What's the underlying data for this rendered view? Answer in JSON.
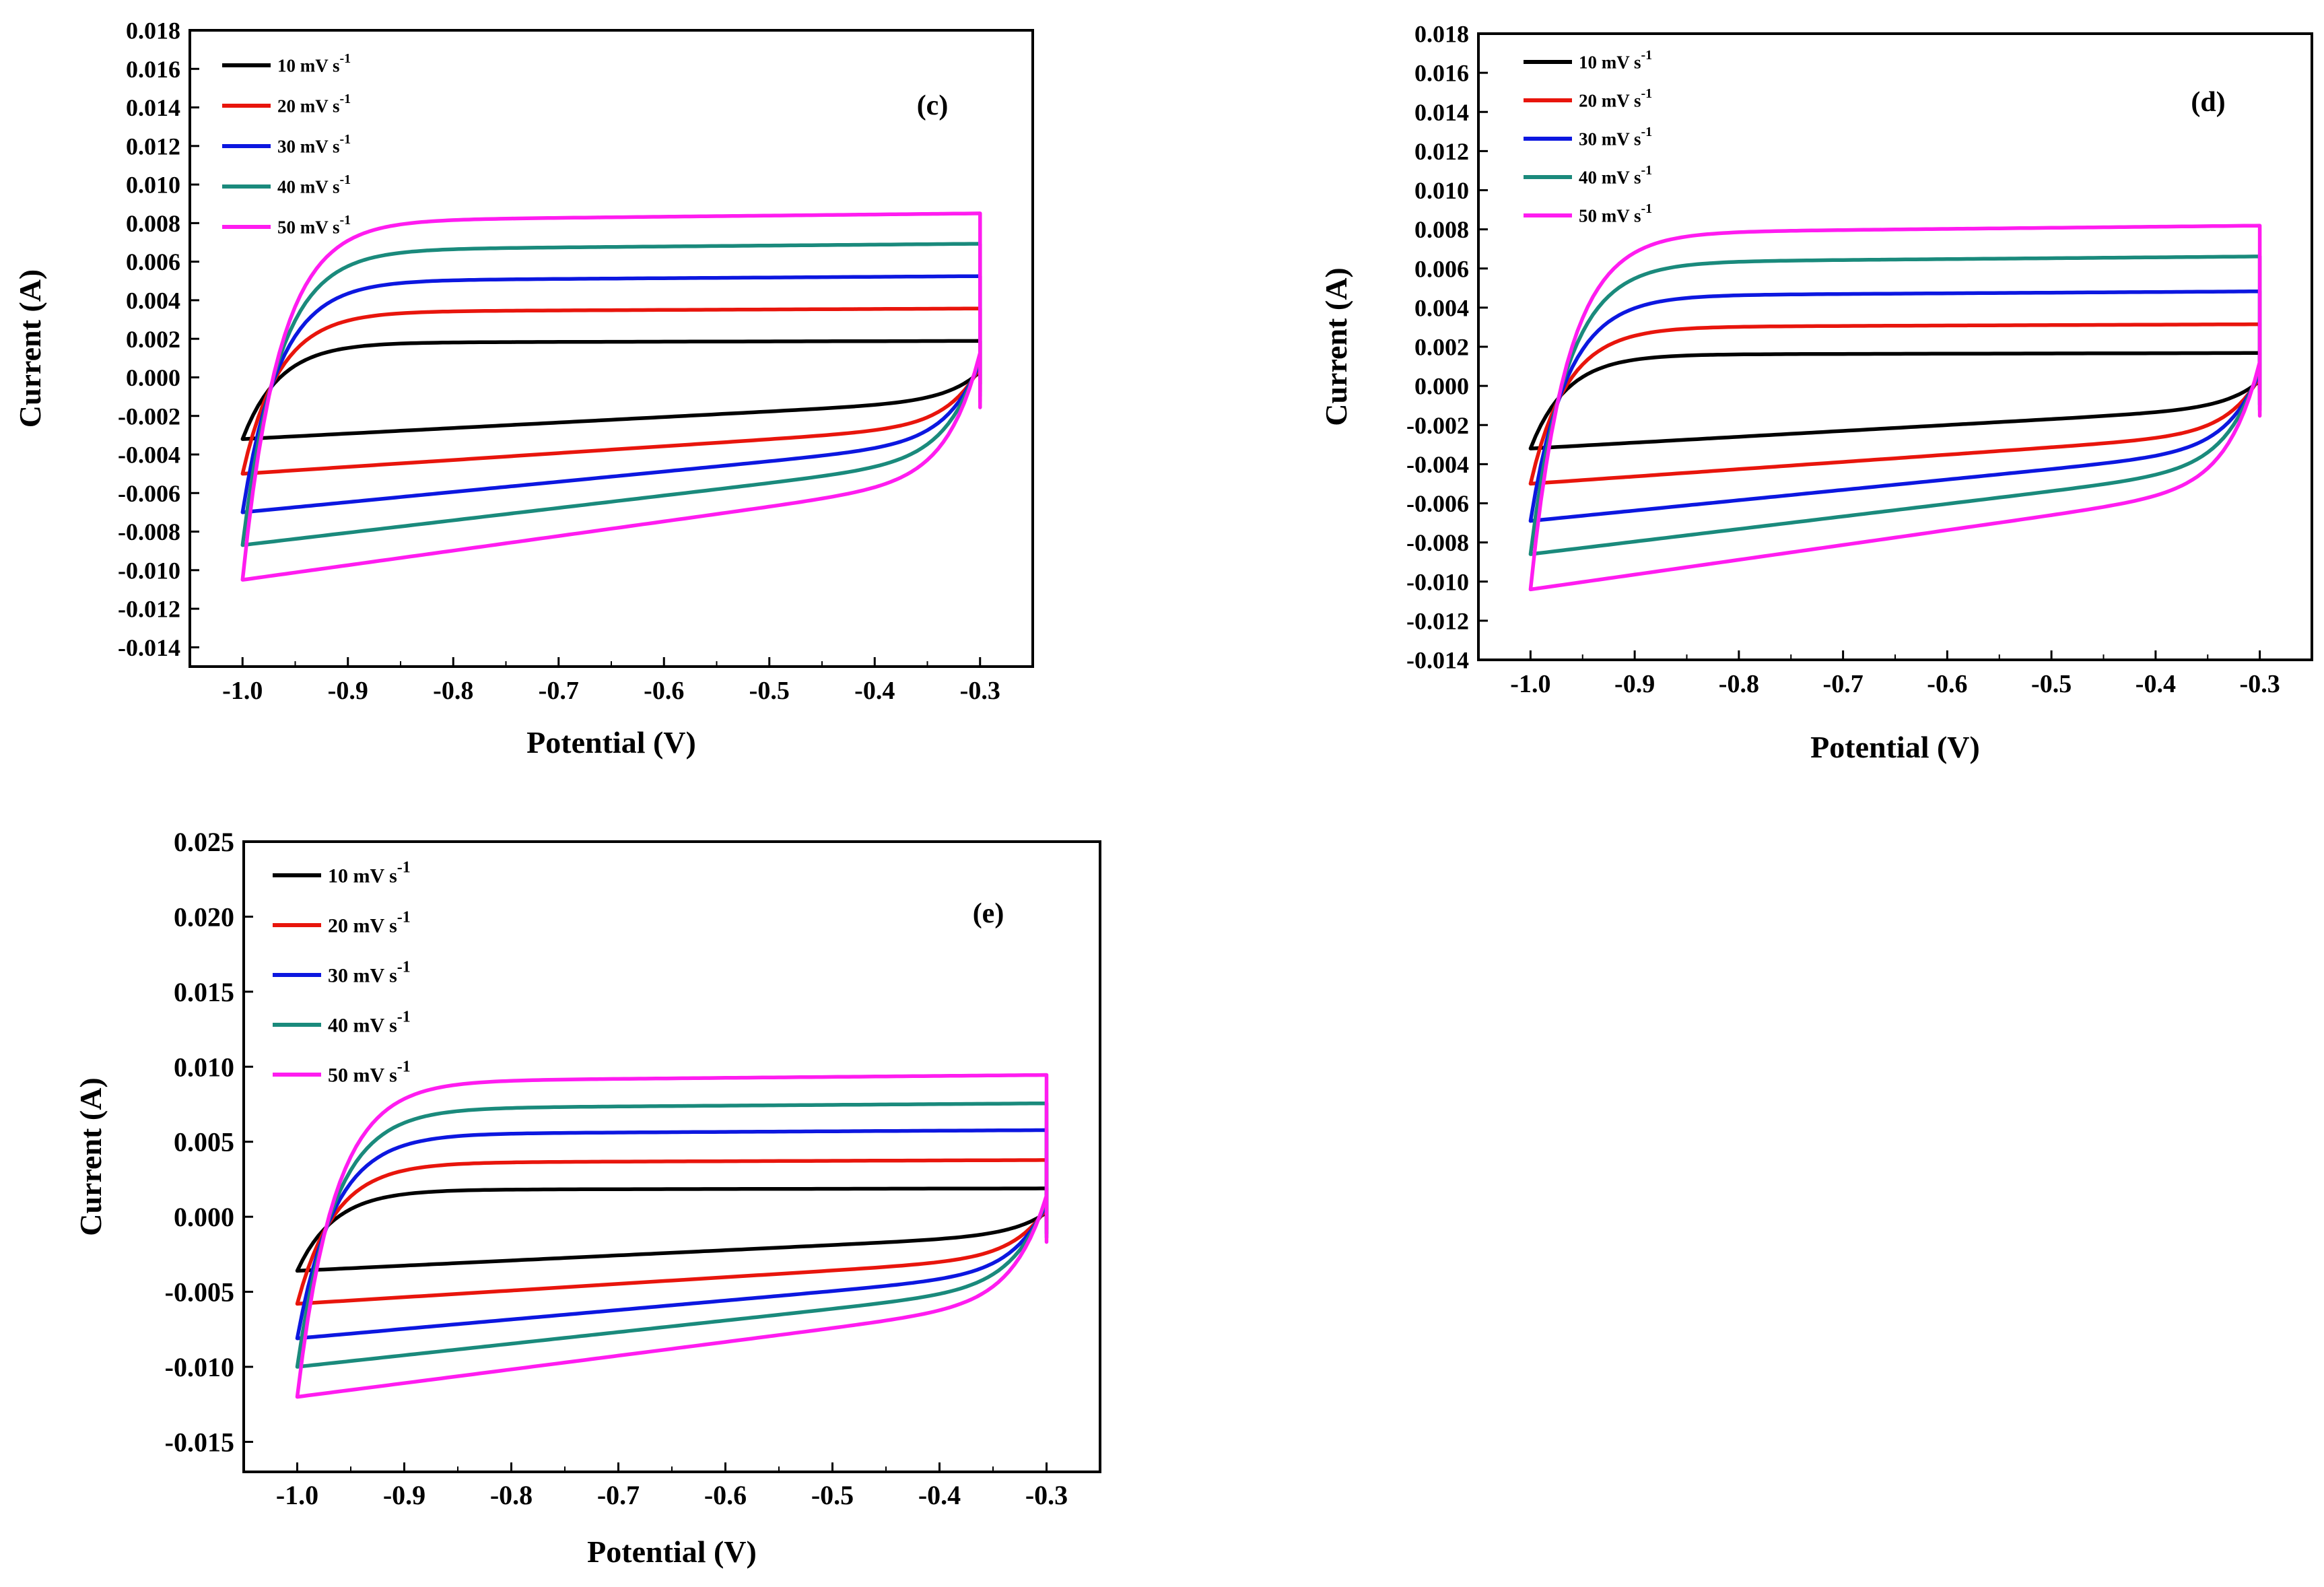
{
  "colors": {
    "10 mV s-1": "#000000",
    "20 mV s-1": "#e8150c",
    "30 mV s-1": "#0c17e0",
    "40 mV s-1": "#1a8a7c",
    "50 mV s-1": "#ff1cf0"
  },
  "chart_data": [
    {
      "id": "c",
      "type": "line",
      "panel_label": "(c)",
      "xlabel": "Potential (V)",
      "ylabel": "Current (A)",
      "xlim": [
        -1.05,
        -0.25
      ],
      "ylim": [
        -0.015,
        0.018
      ],
      "xticks": [
        -1.0,
        -0.9,
        -0.8,
        -0.7,
        -0.6,
        -0.5,
        -0.4,
        -0.3
      ],
      "xtick_labels": [
        "-1.0",
        "-0.9",
        "-0.8",
        "-0.7",
        "-0.6",
        "-0.5",
        "-0.4",
        "-0.3"
      ],
      "yticks": [
        -0.014,
        -0.012,
        -0.01,
        -0.008,
        -0.006,
        -0.004,
        -0.002,
        0.0,
        0.002,
        0.004,
        0.006,
        0.008,
        0.01,
        0.012,
        0.014,
        0.016,
        0.018
      ],
      "ytick_labels": [
        "-0.014",
        "-0.012",
        "-0.010",
        "-0.008",
        "-0.006",
        "-0.004",
        "-0.002",
        "0.000",
        "0.002",
        "0.004",
        "0.006",
        "0.008",
        "0.010",
        "0.012",
        "0.014",
        "0.016",
        "0.018"
      ],
      "legend_position": "top-left",
      "series": [
        {
          "name": "10 mV s-1",
          "label": "10 mV s",
          "unit_exp": "-1",
          "ipos": 0.0018,
          "ineg_start": -0.0032,
          "ineg_end": -0.0012
        },
        {
          "name": "20 mV s-1",
          "label": "20 mV s",
          "unit_exp": "-1",
          "ipos": 0.0034,
          "ineg_start": -0.005,
          "ineg_end": -0.0025
        },
        {
          "name": "30 mV s-1",
          "label": "30 mV s",
          "unit_exp": "-1",
          "ipos": 0.005,
          "ineg_start": -0.007,
          "ineg_end": -0.0033
        },
        {
          "name": "40 mV s-1",
          "label": "40 mV s",
          "unit_exp": "-1",
          "ipos": 0.0066,
          "ineg_start": -0.0087,
          "ineg_end": -0.0042
        },
        {
          "name": "50 mV s-1",
          "label": "50 mV s",
          "unit_exp": "-1",
          "ipos": 0.0081,
          "ineg_start": -0.0105,
          "ineg_end": -0.0052
        }
      ]
    },
    {
      "id": "d",
      "type": "line",
      "panel_label": "(d)",
      "xlabel": "Potential (V)",
      "ylabel": "Current (A)",
      "xlim": [
        -1.05,
        -0.25
      ],
      "ylim": [
        -0.014,
        0.018
      ],
      "xticks": [
        -1.0,
        -0.9,
        -0.8,
        -0.7,
        -0.6,
        -0.5,
        -0.4,
        -0.3
      ],
      "xtick_labels": [
        "-1.0",
        "-0.9",
        "-0.8",
        "-0.7",
        "-0.6",
        "-0.5",
        "-0.4",
        "-0.3"
      ],
      "yticks": [
        -0.014,
        -0.012,
        -0.01,
        -0.008,
        -0.006,
        -0.004,
        -0.002,
        0.0,
        0.002,
        0.004,
        0.006,
        0.008,
        0.01,
        0.012,
        0.014,
        0.016,
        0.018
      ],
      "ytick_labels": [
        "-0.014",
        "-0.012",
        "-0.010",
        "-0.008",
        "-0.006",
        "-0.004",
        "-0.002",
        "0.000",
        "0.002",
        "0.004",
        "0.006",
        "0.008",
        "0.010",
        "0.012",
        "0.014",
        "0.016",
        "0.018"
      ],
      "legend_position": "top-left",
      "series": [
        {
          "name": "10 mV s-1",
          "label": "10 mV s",
          "unit_exp": "-1",
          "ipos": 0.0016,
          "ineg_start": -0.0032,
          "ineg_end": -0.0011
        },
        {
          "name": "20 mV s-1",
          "label": "20 mV s",
          "unit_exp": "-1",
          "ipos": 0.003,
          "ineg_start": -0.005,
          "ineg_end": -0.0024
        },
        {
          "name": "30 mV s-1",
          "label": "30 mV s",
          "unit_exp": "-1",
          "ipos": 0.0046,
          "ineg_start": -0.0069,
          "ineg_end": -0.0032
        },
        {
          "name": "40 mV s-1",
          "label": "40 mV s",
          "unit_exp": "-1",
          "ipos": 0.0063,
          "ineg_start": -0.0086,
          "ineg_end": -0.0041
        },
        {
          "name": "50 mV s-1",
          "label": "50 mV s",
          "unit_exp": "-1",
          "ipos": 0.0078,
          "ineg_start": -0.0104,
          "ineg_end": -0.0051
        }
      ]
    },
    {
      "id": "e",
      "type": "line",
      "panel_label": "(e)",
      "xlabel": "Potential (V)",
      "ylabel": "Current (A)",
      "xlim": [
        -1.05,
        -0.25
      ],
      "ylim": [
        -0.017,
        0.025
      ],
      "xticks": [
        -1.0,
        -0.9,
        -0.8,
        -0.7,
        -0.6,
        -0.5,
        -0.4,
        -0.3
      ],
      "xtick_labels": [
        "-1.0",
        "-0.9",
        "-0.8",
        "-0.7",
        "-0.6",
        "-0.5",
        "-0.4",
        "-0.3"
      ],
      "yticks": [
        -0.015,
        -0.01,
        -0.005,
        0.0,
        0.005,
        0.01,
        0.015,
        0.02,
        0.025
      ],
      "ytick_labels": [
        "-0.015",
        "-0.010",
        "-0.005",
        "0.000",
        "0.005",
        "0.010",
        "0.015",
        "0.020",
        "0.025"
      ],
      "legend_position": "top-left",
      "series": [
        {
          "name": "10 mV s-1",
          "label": "10 mV s",
          "unit_exp": "-1",
          "ipos": 0.0018,
          "ineg_start": -0.0036,
          "ineg_end": -0.0012
        },
        {
          "name": "20 mV s-1",
          "label": "20 mV s",
          "unit_exp": "-1",
          "ipos": 0.0036,
          "ineg_start": -0.0058,
          "ineg_end": -0.0027
        },
        {
          "name": "30 mV s-1",
          "label": "30 mV s",
          "unit_exp": "-1",
          "ipos": 0.0055,
          "ineg_start": -0.0081,
          "ineg_end": -0.0037
        },
        {
          "name": "40 mV s-1",
          "label": "40 mV s",
          "unit_exp": "-1",
          "ipos": 0.0072,
          "ineg_start": -0.01,
          "ineg_end": -0.0046
        },
        {
          "name": "50 mV s-1",
          "label": "50 mV s",
          "unit_exp": "-1",
          "ipos": 0.009,
          "ineg_start": -0.012,
          "ineg_end": -0.0056
        }
      ]
    }
  ]
}
